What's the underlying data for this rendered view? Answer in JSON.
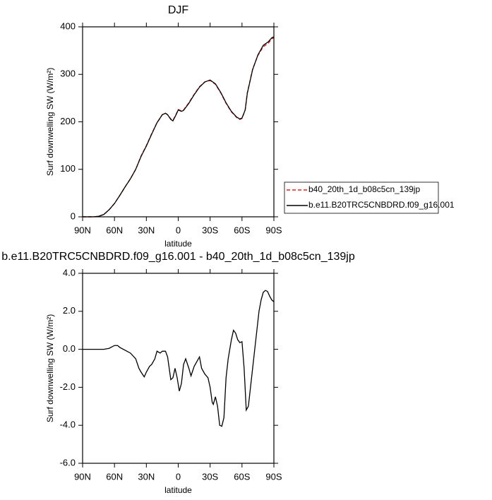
{
  "chart_data": [
    {
      "type": "line",
      "title": "DJF",
      "xlabel": "latitude",
      "ylabel": "Surf downwelling SW (W/m²)",
      "x": [
        90,
        85,
        80,
        75,
        70,
        65,
        60,
        55,
        50,
        45,
        40,
        35,
        30,
        25,
        20,
        15,
        12,
        10,
        7,
        5,
        2,
        0,
        -3,
        -5,
        -10,
        -15,
        -20,
        -25,
        -30,
        -35,
        -40,
        -45,
        -50,
        -55,
        -58,
        -60,
        -63,
        -65,
        -70,
        -75,
        -80,
        -85,
        -88,
        -90
      ],
      "series": [
        {
          "name": "b40_20th_1d_b08c5cn_139jp",
          "color": "#d62020",
          "dash": true,
          "values": [
            0,
            0,
            0,
            1,
            5,
            15,
            28,
            45,
            63,
            80,
            100,
            128,
            150,
            175,
            198,
            215,
            218,
            215,
            206,
            203,
            216,
            226,
            223,
            225,
            240,
            258,
            274,
            284,
            287,
            279,
            261,
            239,
            221,
            209,
            205,
            207,
            225,
            261,
            311,
            340,
            358,
            366,
            375,
            377
          ]
        },
        {
          "name": "b.e11.B20TRC5CNBDRD.f09_g16.001",
          "color": "#000000",
          "dash": false,
          "values": [
            0,
            0,
            0,
            1,
            5,
            15,
            28,
            45,
            63,
            80,
            100,
            127,
            149,
            174,
            198,
            215,
            218,
            215,
            205,
            202,
            215,
            225,
            222,
            224,
            239,
            257,
            273,
            284,
            288,
            280,
            262,
            240,
            222,
            210,
            206,
            208,
            225,
            260,
            310,
            341,
            361,
            369,
            377,
            379
          ]
        }
      ],
      "xlim": [
        90,
        -90
      ],
      "xticks": [
        {
          "value": 90,
          "label": "90N"
        },
        {
          "value": 60,
          "label": "60N"
        },
        {
          "value": 30,
          "label": "30N"
        },
        0,
        {
          "value": -30,
          "label": "30S"
        },
        {
          "value": -60,
          "label": "60S"
        },
        {
          "value": -90,
          "label": "90S"
        }
      ],
      "ylim": [
        0,
        400
      ],
      "yticks": [
        0,
        100,
        200,
        300,
        400
      ],
      "legend": "right"
    },
    {
      "type": "line",
      "title": "b.e11.B20TRC5CNBDRD.f09_g16.001 - b40_20th_1d_b08c5cn_139jp",
      "xlabel": "latitude",
      "ylabel": "Surf downwelling SW (W/m²)",
      "x": [
        90,
        80,
        70,
        65,
        60,
        57,
        55,
        50,
        45,
        40,
        37,
        35,
        32,
        30,
        27,
        25,
        22,
        20,
        17,
        15,
        12,
        10,
        7,
        5,
        3,
        1,
        -1,
        -3,
        -5,
        -7,
        -10,
        -12,
        -15,
        -18,
        -20,
        -22,
        -25,
        -28,
        -30,
        -32,
        -33,
        -35,
        -37,
        -39,
        -41,
        -43,
        -45,
        -47,
        -50,
        -52,
        -54,
        -56,
        -58,
        -60,
        -62,
        -64,
        -66,
        -68,
        -70,
        -72,
        -74,
        -76,
        -78,
        -80,
        -82,
        -84,
        -86,
        -88,
        -90
      ],
      "series": [
        {
          "color": "#000000",
          "dash": false,
          "values": [
            0,
            0,
            0,
            0.05,
            0.2,
            0.2,
            0.1,
            -0.05,
            -0.2,
            -0.5,
            -1.0,
            -1.2,
            -1.45,
            -1.2,
            -0.9,
            -0.8,
            -0.5,
            -0.1,
            -0.2,
            -0.1,
            -0.1,
            -0.4,
            -1.6,
            -1.5,
            -1.0,
            -1.5,
            -2.2,
            -1.8,
            -0.8,
            -0.5,
            -1.0,
            -1.4,
            -0.9,
            -0.6,
            -0.4,
            -1.0,
            -1.3,
            -1.5,
            -2.0,
            -2.8,
            -2.9,
            -2.5,
            -3.0,
            -4.0,
            -4.05,
            -3.6,
            -1.5,
            -0.5,
            0.5,
            1.0,
            0.85,
            0.5,
            0.35,
            0.4,
            -1.0,
            -3.2,
            -3.0,
            -2.0,
            -1.0,
            0,
            1.0,
            2.0,
            2.6,
            3.0,
            3.1,
            3.05,
            2.8,
            2.6,
            2.5
          ]
        }
      ],
      "xlim": [
        90,
        -90
      ],
      "xticks": [
        {
          "value": 90,
          "label": "90N"
        },
        {
          "value": 60,
          "label": "60N"
        },
        {
          "value": 30,
          "label": "30N"
        },
        0,
        {
          "value": -30,
          "label": "30S"
        },
        {
          "value": -60,
          "label": "60S"
        },
        {
          "value": -90,
          "label": "90S"
        }
      ],
      "ylim": [
        -6,
        4
      ],
      "yticks": [
        {
          "value": 4,
          "label": "4.0"
        },
        {
          "value": 2,
          "label": "2.0"
        },
        {
          "value": 0,
          "label": "0.0"
        },
        {
          "value": -2,
          "label": "-2.0"
        },
        {
          "value": -4,
          "label": "-4.0"
        },
        {
          "value": -6,
          "label": "-6.0"
        }
      ]
    }
  ]
}
